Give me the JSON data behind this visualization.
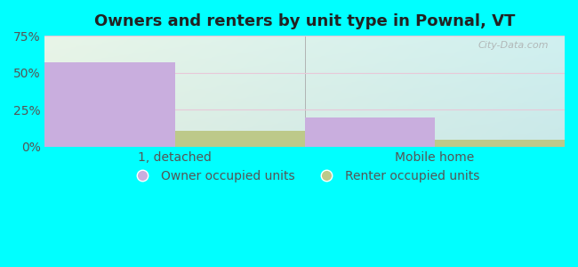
{
  "title": "Owners and renters by unit type in Pownal, VT",
  "categories": [
    "1, detached",
    "Mobile home"
  ],
  "owner_values": [
    57,
    20
  ],
  "renter_values": [
    11,
    5
  ],
  "owner_color": "#c9aede",
  "renter_color": "#bdc98a",
  "bar_width": 0.25,
  "ylim": [
    0,
    75
  ],
  "yticks": [
    0,
    25,
    50,
    75
  ],
  "yticklabels": [
    "0%",
    "25%",
    "50%",
    "75%"
  ],
  "outer_background": "#00ffff",
  "title_fontsize": 13,
  "axis_label_fontsize": 10,
  "legend_fontsize": 10,
  "watermark": "City-Data.com",
  "grid_color": "#dddddd",
  "tick_color": "#555555"
}
